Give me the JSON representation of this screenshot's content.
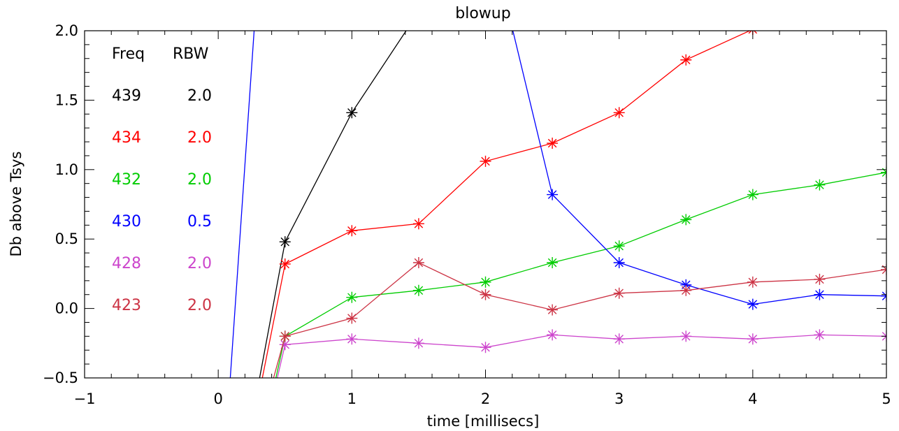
{
  "chart_data": {
    "type": "line",
    "title": "blowup",
    "xlabel": "time [millisecs]",
    "ylabel": "Db above Tsys",
    "xlim": [
      -1,
      5
    ],
    "ylim": [
      -0.5,
      2.0
    ],
    "xticks": [
      "−1",
      "0",
      "1",
      "2",
      "3",
      "4",
      "5"
    ],
    "yticks": [
      "−0.5",
      "0.0",
      "0.5",
      "1.0",
      "1.5",
      "2.0"
    ],
    "legend": {
      "placement": "top-left",
      "header_freq": "Freq",
      "header_rbw": "RBW"
    },
    "series": [
      {
        "freq": "439",
        "rbw": "2.0",
        "color": "#000000",
        "points": [
          [
            0.3,
            -0.55
          ],
          [
            0.5,
            0.48
          ],
          [
            1.0,
            1.41
          ],
          [
            1.42,
            2.02
          ]
        ],
        "markers": [
          [
            0.5,
            0.48
          ],
          [
            1.0,
            1.41
          ]
        ]
      },
      {
        "freq": "434",
        "rbw": "2.0",
        "color": "#ff0000",
        "points": [
          [
            0.32,
            -0.55
          ],
          [
            0.5,
            0.32
          ],
          [
            1.0,
            0.56
          ],
          [
            1.5,
            0.61
          ],
          [
            2.0,
            1.06
          ],
          [
            2.5,
            1.19
          ],
          [
            3.0,
            1.41
          ],
          [
            3.5,
            1.79
          ],
          [
            4.0,
            2.01
          ]
        ],
        "markers": [
          [
            0.5,
            0.32
          ],
          [
            1.0,
            0.56
          ],
          [
            1.5,
            0.61
          ],
          [
            2.0,
            1.06
          ],
          [
            2.5,
            1.19
          ],
          [
            3.0,
            1.41
          ],
          [
            3.5,
            1.79
          ],
          [
            4.0,
            2.01
          ]
        ]
      },
      {
        "freq": "432",
        "rbw": "2.0",
        "color": "#00cc00",
        "points": [
          [
            0.42,
            -0.55
          ],
          [
            0.5,
            -0.2
          ],
          [
            1.0,
            0.08
          ],
          [
            1.5,
            0.13
          ],
          [
            2.0,
            0.19
          ],
          [
            2.5,
            0.33
          ],
          [
            3.0,
            0.45
          ],
          [
            3.5,
            0.64
          ],
          [
            4.0,
            0.82
          ],
          [
            4.5,
            0.89
          ],
          [
            5.0,
            0.98
          ]
        ],
        "markers": [
          [
            0.5,
            -0.2
          ],
          [
            1.0,
            0.08
          ],
          [
            1.5,
            0.13
          ],
          [
            2.0,
            0.19
          ],
          [
            2.5,
            0.33
          ],
          [
            3.0,
            0.45
          ],
          [
            3.5,
            0.64
          ],
          [
            4.0,
            0.82
          ],
          [
            4.5,
            0.89
          ],
          [
            5.0,
            0.98
          ]
        ]
      },
      {
        "freq": "430",
        "rbw": "0.5",
        "color": "#0000ff",
        "points": [
          [
            0.09,
            -0.5
          ],
          [
            0.27,
            2.02
          ],
          [
            2.2,
            2.02
          ],
          [
            2.5,
            0.82
          ],
          [
            3.0,
            0.33
          ],
          [
            3.5,
            0.17
          ],
          [
            4.0,
            0.03
          ],
          [
            4.5,
            0.1
          ],
          [
            5.0,
            0.09
          ]
        ],
        "markers": [
          [
            2.5,
            0.82
          ],
          [
            3.0,
            0.33
          ],
          [
            3.5,
            0.17
          ],
          [
            4.0,
            0.03
          ],
          [
            4.5,
            0.1
          ],
          [
            5.0,
            0.09
          ]
        ]
      },
      {
        "freq": "428",
        "rbw": "2.0",
        "color": "#cc44cc",
        "points": [
          [
            0.43,
            -0.55
          ],
          [
            0.5,
            -0.26
          ],
          [
            1.0,
            -0.22
          ],
          [
            1.5,
            -0.25
          ],
          [
            2.0,
            -0.28
          ],
          [
            2.5,
            -0.19
          ],
          [
            3.0,
            -0.22
          ],
          [
            3.5,
            -0.2
          ],
          [
            4.0,
            -0.22
          ],
          [
            4.5,
            -0.19
          ],
          [
            5.0,
            -0.2
          ]
        ],
        "markers": [
          [
            0.5,
            -0.26
          ],
          [
            1.0,
            -0.22
          ],
          [
            1.5,
            -0.25
          ],
          [
            2.0,
            -0.28
          ],
          [
            2.5,
            -0.19
          ],
          [
            3.0,
            -0.22
          ],
          [
            3.5,
            -0.2
          ],
          [
            4.0,
            -0.22
          ],
          [
            4.5,
            -0.19
          ],
          [
            5.0,
            -0.2
          ]
        ]
      },
      {
        "freq": "423",
        "rbw": "2.0",
        "color": "#cc3344",
        "points": [
          [
            0.4,
            -0.55
          ],
          [
            0.5,
            -0.2
          ],
          [
            1.0,
            -0.07
          ],
          [
            1.5,
            0.33
          ],
          [
            2.0,
            0.1
          ],
          [
            2.5,
            -0.01
          ],
          [
            3.0,
            0.11
          ],
          [
            3.5,
            0.13
          ],
          [
            4.0,
            0.19
          ],
          [
            4.5,
            0.21
          ],
          [
            5.0,
            0.28
          ]
        ],
        "markers": [
          [
            0.5,
            -0.2
          ],
          [
            1.0,
            -0.07
          ],
          [
            1.5,
            0.33
          ],
          [
            2.0,
            0.1
          ],
          [
            2.5,
            -0.01
          ],
          [
            3.0,
            0.11
          ],
          [
            3.5,
            0.13
          ],
          [
            4.0,
            0.19
          ],
          [
            4.5,
            0.21
          ],
          [
            5.0,
            0.28
          ]
        ]
      }
    ]
  }
}
